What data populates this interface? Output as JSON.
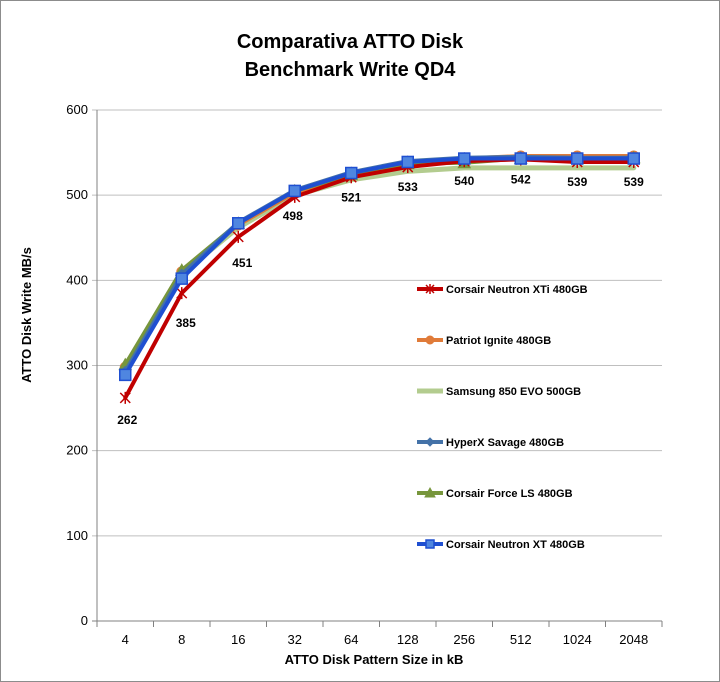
{
  "chart_data": {
    "type": "line",
    "title": [
      "Comparativa ATTO Disk",
      "Benchmark Write QD4"
    ],
    "xlabel": "ATTO Disk Pattern Size in kB",
    "ylabel": "ATTO Disk Write MB/s",
    "categories": [
      "4",
      "8",
      "16",
      "32",
      "64",
      "128",
      "256",
      "512",
      "1024",
      "2048"
    ],
    "ylim": [
      0,
      600
    ],
    "yticks": [
      "0",
      "100",
      "200",
      "300",
      "400",
      "500",
      "600"
    ],
    "grid": true,
    "legend_position": "right",
    "series": [
      {
        "name": "Corsair Neutron XTi 480GB",
        "color": "#c00000",
        "marker": "star",
        "values": [
          262,
          385,
          451,
          498,
          521,
          533,
          540,
          542,
          539,
          539
        ],
        "labels": [
          "262",
          "385",
          "451",
          "498",
          "521",
          "533",
          "540",
          "542",
          "539",
          "539"
        ]
      },
      {
        "name": "Patriot Ignite 480GB",
        "color": "#e07b39",
        "marker": "circle",
        "values": [
          298,
          410,
          465,
          503,
          523,
          538,
          543,
          546,
          546,
          546
        ]
      },
      {
        "name": "Samsung 850 EVO 500GB",
        "color": "#b3cc8f",
        "marker": "none",
        "values": [
          296,
          408,
          462,
          500,
          518,
          528,
          532,
          532,
          532,
          532
        ]
      },
      {
        "name": "HyperX Savage 480GB",
        "color": "#4472a8",
        "marker": "diamond",
        "values": [
          293,
          407,
          468,
          506,
          527,
          540,
          544,
          545,
          544,
          544
        ]
      },
      {
        "name": "Corsair Force LS 480GB",
        "color": "#77963c",
        "marker": "triangle",
        "values": [
          301,
          412,
          467,
          505,
          524,
          537,
          538,
          543,
          543,
          544
        ]
      },
      {
        "name": "Corsair Neutron XT 480GB",
        "color": "#1f4fd1",
        "marker": "square",
        "values": [
          289,
          402,
          467,
          505,
          526,
          539,
          543,
          543,
          543,
          543
        ]
      }
    ]
  }
}
